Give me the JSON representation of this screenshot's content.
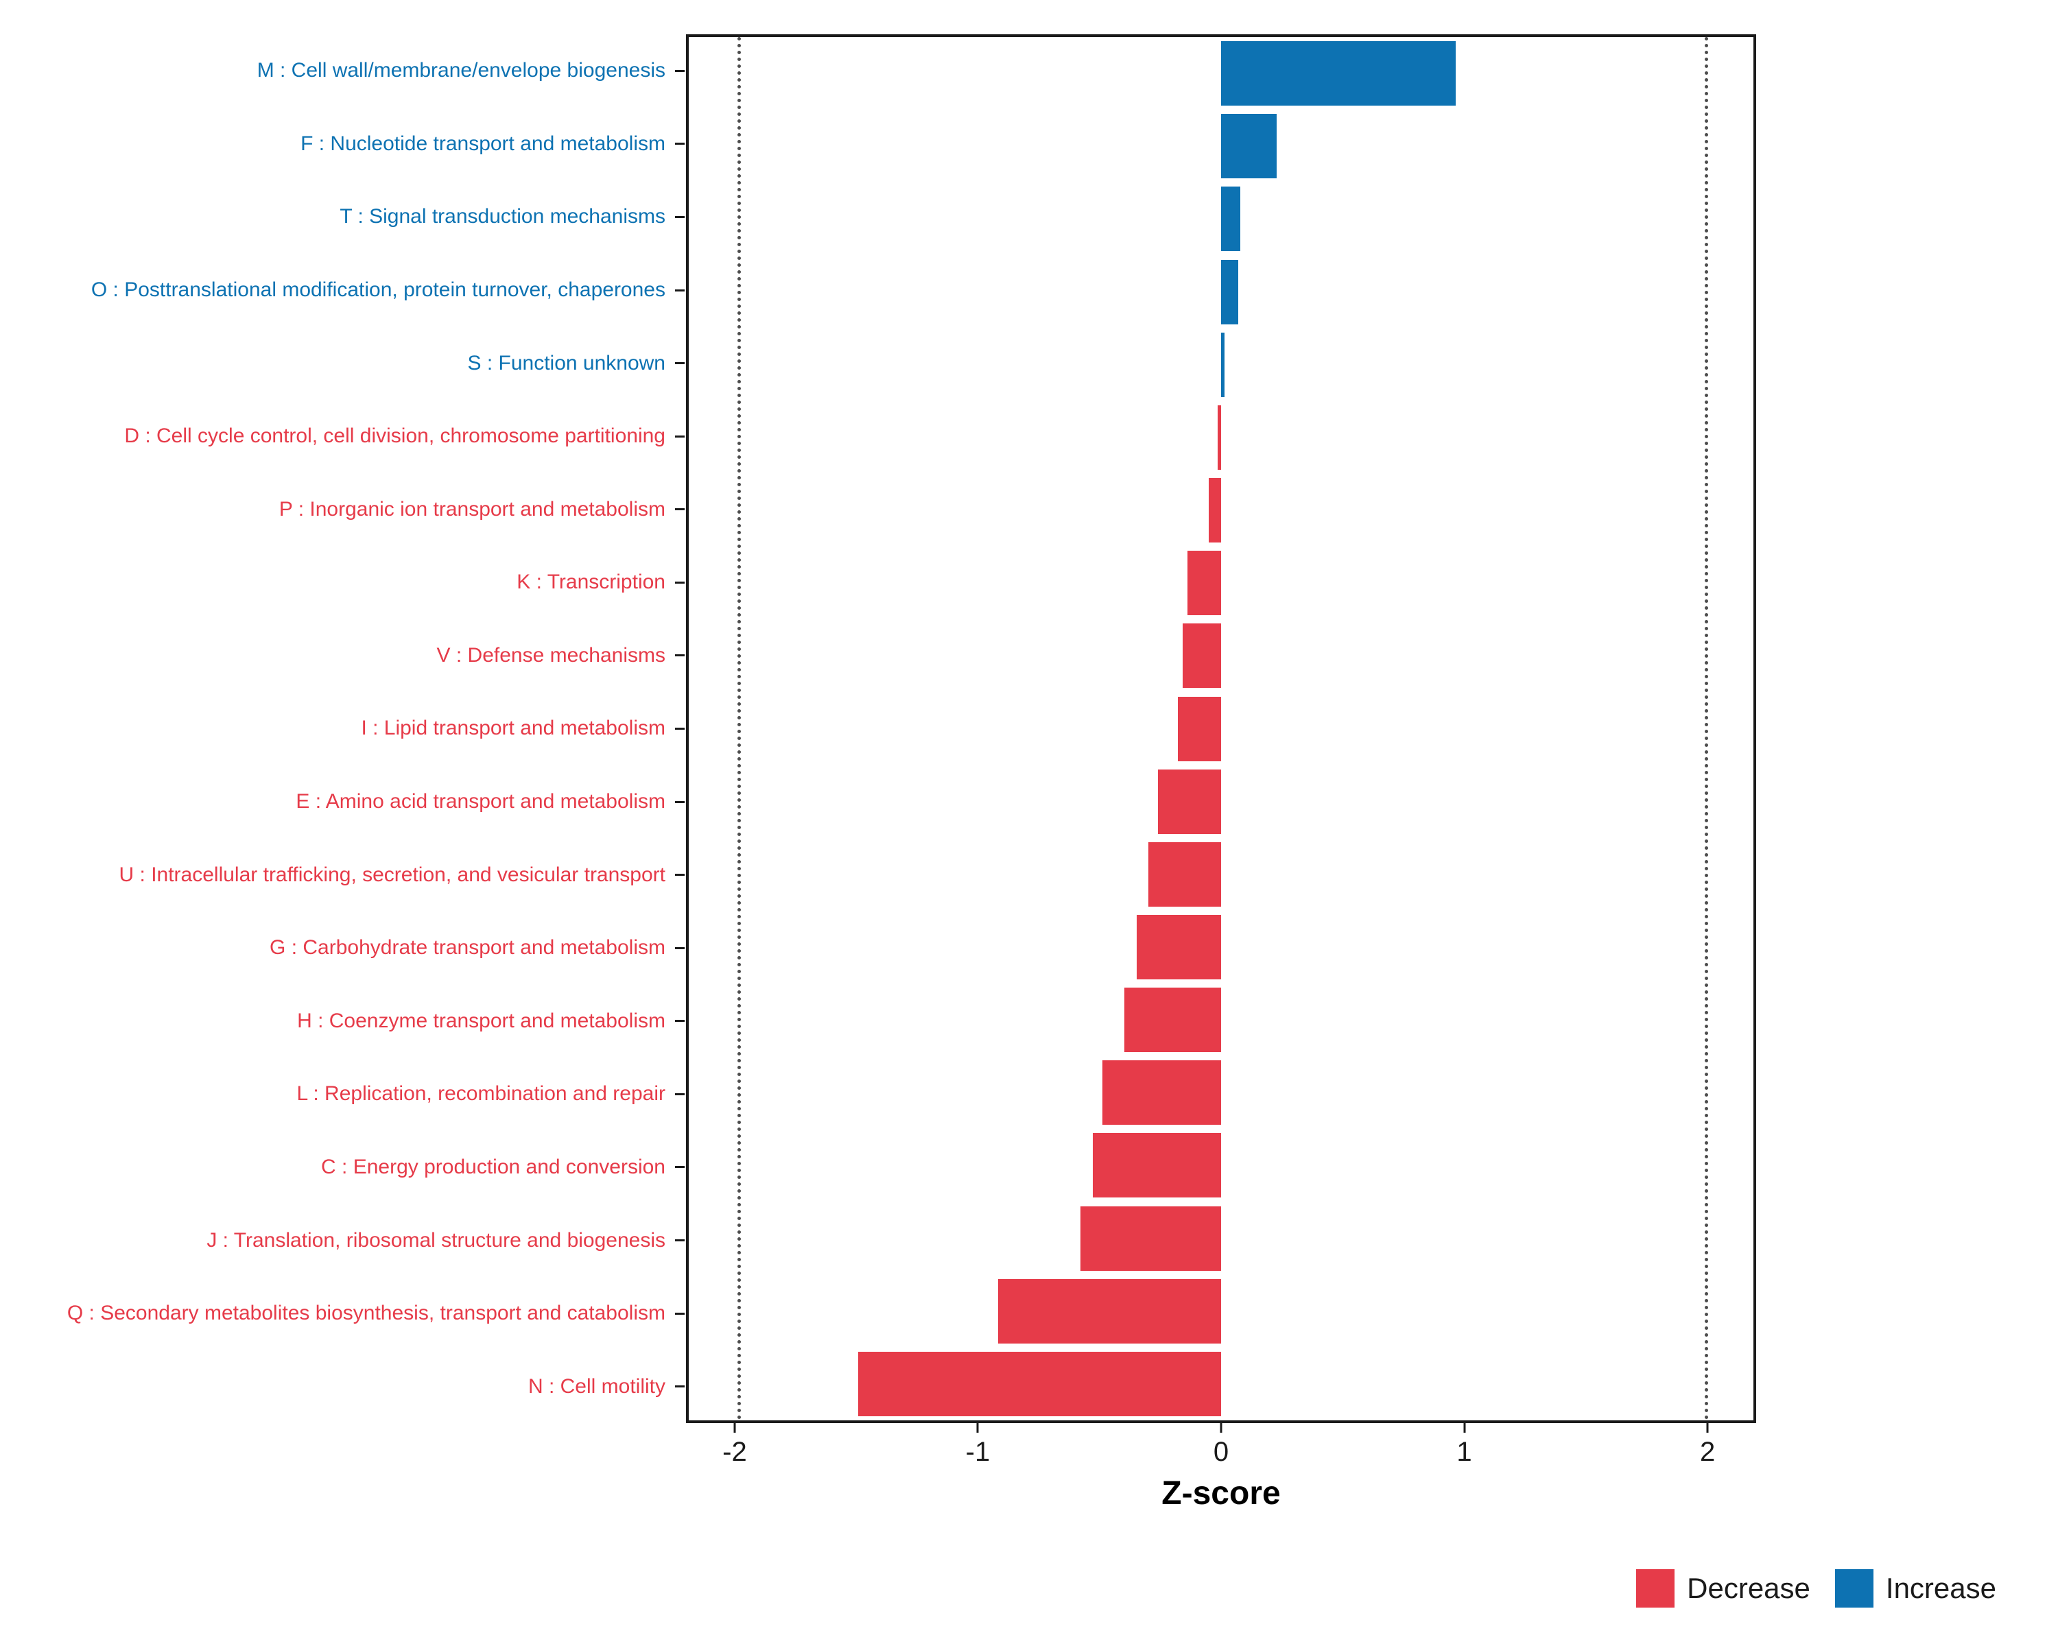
{
  "figure": {
    "background": "#FFFFFF",
    "panel_border_color": "#1A1A1A"
  },
  "chart_data": {
    "type": "bar",
    "orientation": "horizontal",
    "title": "",
    "xlabel": "Z-score",
    "ylabel": "",
    "xlim": [
      -2.2,
      2.2
    ],
    "grid": false,
    "reference_lines": {
      "values": [
        -2,
        2
      ],
      "style": "dotted",
      "color": "#4D4D4D"
    },
    "x_ticks": [
      {
        "value": -2,
        "label": "-2"
      },
      {
        "value": -1,
        "label": "-1"
      },
      {
        "value": 0,
        "label": "0"
      },
      {
        "value": 1,
        "label": "1"
      },
      {
        "value": 2,
        "label": "2"
      }
    ],
    "colors": {
      "Decrease": "#E63B49",
      "Increase": "#0D72B2"
    },
    "legend": {
      "position": "bottom-right",
      "entries": [
        {
          "label": "Decrease",
          "color": "#E63B49"
        },
        {
          "label": "Increase",
          "color": "#0D72B2"
        }
      ]
    },
    "categories": [
      {
        "label": "M : Cell wall/membrane/envelope biogenesis",
        "value": 0.97,
        "direction": "Increase"
      },
      {
        "label": "F : Nucleotide transport and metabolism",
        "value": 0.23,
        "direction": "Increase"
      },
      {
        "label": "T : Signal transduction mechanisms",
        "value": 0.08,
        "direction": "Increase"
      },
      {
        "label": "O : Posttranslational modification, protein turnover, chaperones",
        "value": 0.07,
        "direction": "Increase"
      },
      {
        "label": "S : Function unknown",
        "value": 0.015,
        "direction": "Increase"
      },
      {
        "label": "D : Cell cycle control, cell division, chromosome partitioning",
        "value": -0.015,
        "direction": "Decrease"
      },
      {
        "label": "P : Inorganic ion transport and metabolism",
        "value": -0.05,
        "direction": "Decrease"
      },
      {
        "label": "K : Transcription",
        "value": -0.14,
        "direction": "Decrease"
      },
      {
        "label": "V : Defense mechanisms",
        "value": -0.16,
        "direction": "Decrease"
      },
      {
        "label": "I : Lipid transport and metabolism",
        "value": -0.18,
        "direction": "Decrease"
      },
      {
        "label": "E : Amino acid transport and metabolism",
        "value": -0.26,
        "direction": "Decrease"
      },
      {
        "label": "U : Intracellular trafficking, secretion, and vesicular transport",
        "value": -0.3,
        "direction": "Decrease"
      },
      {
        "label": "G : Carbohydrate transport and metabolism",
        "value": -0.35,
        "direction": "Decrease"
      },
      {
        "label": "H : Coenzyme transport and metabolism",
        "value": -0.4,
        "direction": "Decrease"
      },
      {
        "label": "L : Replication, recombination and repair",
        "value": -0.49,
        "direction": "Decrease"
      },
      {
        "label": "C : Energy production and conversion",
        "value": -0.53,
        "direction": "Decrease"
      },
      {
        "label": "J : Translation, ribosomal structure and biogenesis",
        "value": -0.58,
        "direction": "Decrease"
      },
      {
        "label": "Q : Secondary metabolites biosynthesis, transport and catabolism",
        "value": -0.92,
        "direction": "Decrease"
      },
      {
        "label": "N : Cell motility",
        "value": -1.5,
        "direction": "Decrease"
      }
    ]
  }
}
